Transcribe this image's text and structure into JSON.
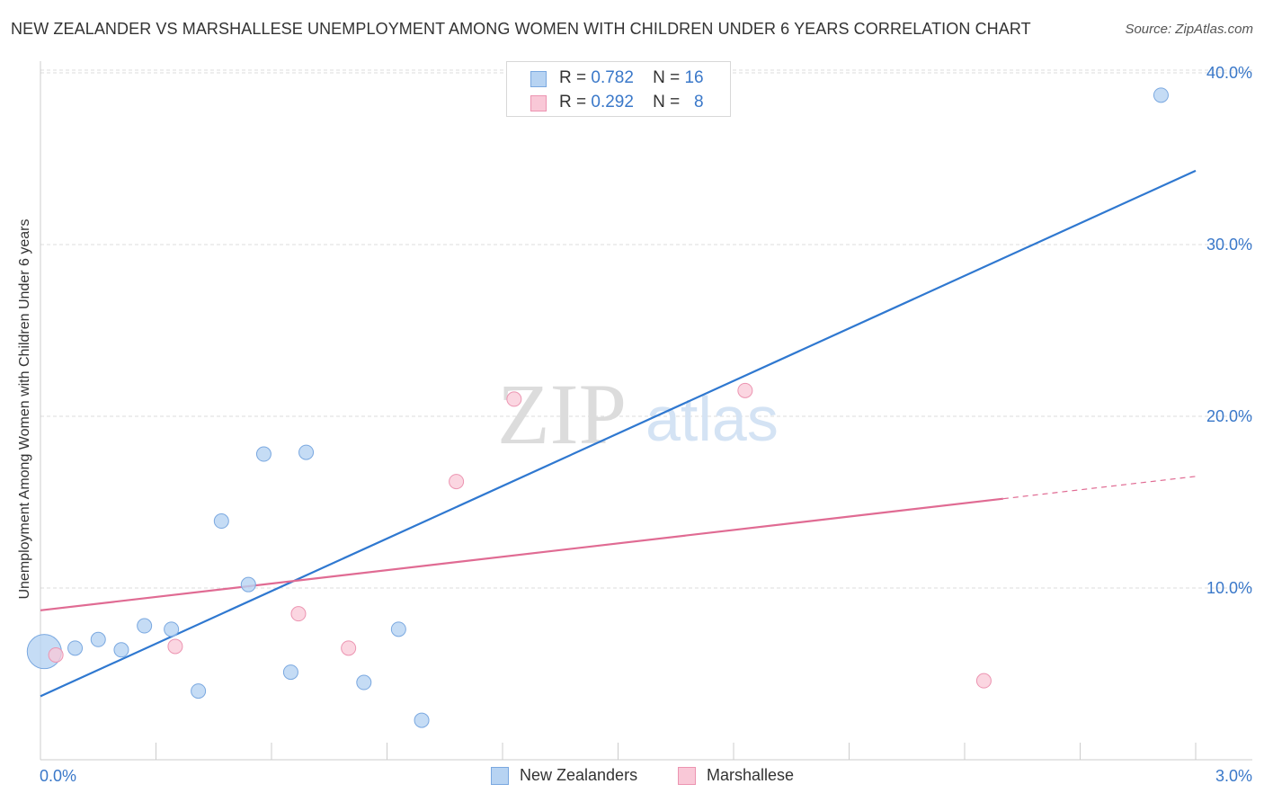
{
  "header": {
    "title": "NEW ZEALANDER VS MARSHALLESE UNEMPLOYMENT AMONG WOMEN WITH CHILDREN UNDER 6 YEARS CORRELATION CHART",
    "source": "Source: ZipAtlas.com"
  },
  "watermark": {
    "zip": "ZIP",
    "atlas": "atlas"
  },
  "legend": {
    "rows": [
      {
        "r_label": "R =",
        "r_value": "0.782",
        "n_label": "N =",
        "n_value": "16"
      },
      {
        "r_label": "R =",
        "r_value": "0.292",
        "n_label": "N =",
        "n_value": "8"
      }
    ]
  },
  "bottom_legend": {
    "items": [
      {
        "label": "New Zealanders"
      },
      {
        "label": "Marshallese"
      }
    ]
  },
  "colors": {
    "blue_fill": "#b7d3f2",
    "blue_stroke": "#7aa8e0",
    "blue_line": "#2f78d0",
    "pink_fill": "#f9c8d7",
    "pink_stroke": "#ec94b1",
    "pink_line": "#e06b93",
    "tick_text": "#3a78c9",
    "grid": "#dddddd"
  },
  "chart_data": {
    "type": "scatter",
    "title": "NEW ZEALANDER VS MARSHALLESE UNEMPLOYMENT AMONG WOMEN WITH CHILDREN UNDER 6 YEARS CORRELATION CHART",
    "xlabel": "",
    "ylabel": "Unemployment Among Women with Children Under 6 years",
    "xlim": [
      0,
      3.0
    ],
    "ylim": [
      0,
      41.0
    ],
    "x_tick_labels": [
      "0.0%",
      "3.0%"
    ],
    "y_ticks": [
      10,
      20,
      30,
      40
    ],
    "y_tick_labels": [
      "10.0%",
      "20.0%",
      "30.0%",
      "40.0%"
    ],
    "grid": true,
    "series": [
      {
        "name": "New Zealanders",
        "color": "#7aa8e0",
        "r": 0.782,
        "n": 16,
        "points": [
          {
            "x": 0.01,
            "y": 6.3,
            "big": true
          },
          {
            "x": 0.09,
            "y": 6.5
          },
          {
            "x": 0.15,
            "y": 7.0
          },
          {
            "x": 0.21,
            "y": 6.4
          },
          {
            "x": 0.27,
            "y": 7.8
          },
          {
            "x": 0.34,
            "y": 7.6
          },
          {
            "x": 0.41,
            "y": 4.0
          },
          {
            "x": 0.47,
            "y": 13.9
          },
          {
            "x": 0.54,
            "y": 10.2
          },
          {
            "x": 0.58,
            "y": 17.8
          },
          {
            "x": 0.65,
            "y": 5.1
          },
          {
            "x": 0.69,
            "y": 17.9
          },
          {
            "x": 0.84,
            "y": 4.5
          },
          {
            "x": 0.93,
            "y": 7.6
          },
          {
            "x": 0.99,
            "y": 2.3
          },
          {
            "x": 2.91,
            "y": 38.7
          }
        ],
        "trendline": {
          "x": [
            0.0,
            3.0
          ],
          "y": [
            3.7,
            34.3
          ]
        }
      },
      {
        "name": "Marshallese",
        "color": "#ec94b1",
        "r": 0.292,
        "n": 8,
        "points": [
          {
            "x": 0.04,
            "y": 6.1
          },
          {
            "x": 0.35,
            "y": 6.6
          },
          {
            "x": 0.67,
            "y": 8.5
          },
          {
            "x": 0.8,
            "y": 6.5
          },
          {
            "x": 1.08,
            "y": 16.2
          },
          {
            "x": 1.23,
            "y": 21.0
          },
          {
            "x": 1.83,
            "y": 21.5
          },
          {
            "x": 2.45,
            "y": 4.6
          }
        ],
        "trendline": {
          "x": [
            0.0,
            2.5
          ],
          "y": [
            8.7,
            15.2
          ],
          "dashed_to": {
            "x": 3.0,
            "y": 16.5
          }
        }
      }
    ]
  }
}
